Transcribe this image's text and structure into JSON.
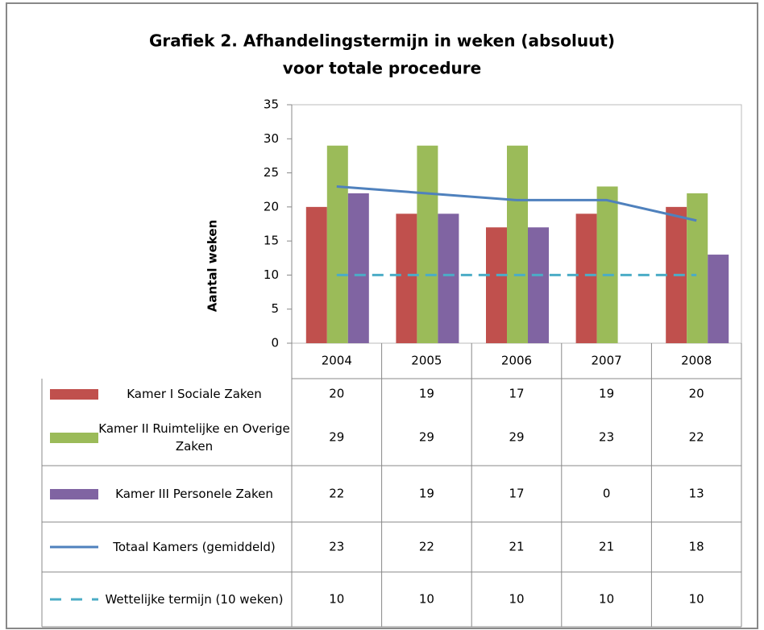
{
  "chart_data": {
    "type": "bar",
    "title": "Grafiek 2. Afhandelingstermijn in weken (absoluut)",
    "subtitle": "voor totale procedure",
    "y_label": "Aantal weken",
    "categories": [
      "2004",
      "2005",
      "2006",
      "2007",
      "2008"
    ],
    "series": [
      {
        "name": "Kamer I Sociale Zaken",
        "type": "bar",
        "color": "#c0504d",
        "values": [
          20,
          19,
          17,
          19,
          20
        ]
      },
      {
        "name": "Kamer II Ruimtelijke en Overige Zaken",
        "type": "bar",
        "color": "#9bbb59",
        "values": [
          29,
          29,
          29,
          23,
          22
        ]
      },
      {
        "name": "Kamer III Personele Zaken",
        "type": "bar",
        "color": "#8064a2",
        "values": [
          22,
          19,
          17,
          0,
          13
        ]
      },
      {
        "name": "Totaal Kamers (gemiddeld)",
        "type": "line",
        "color": "#4f81bd",
        "values": [
          23,
          22,
          21,
          21,
          18
        ]
      },
      {
        "name": "Wettelijke termijn (10 weken)",
        "type": "line",
        "dashed": true,
        "color": "#4bacc6",
        "values": [
          10,
          10,
          10,
          10,
          10
        ]
      }
    ],
    "ylim": [
      0,
      35
    ],
    "yticks": [
      0,
      5,
      10,
      15,
      20,
      25,
      30,
      35
    ],
    "grid": false
  }
}
